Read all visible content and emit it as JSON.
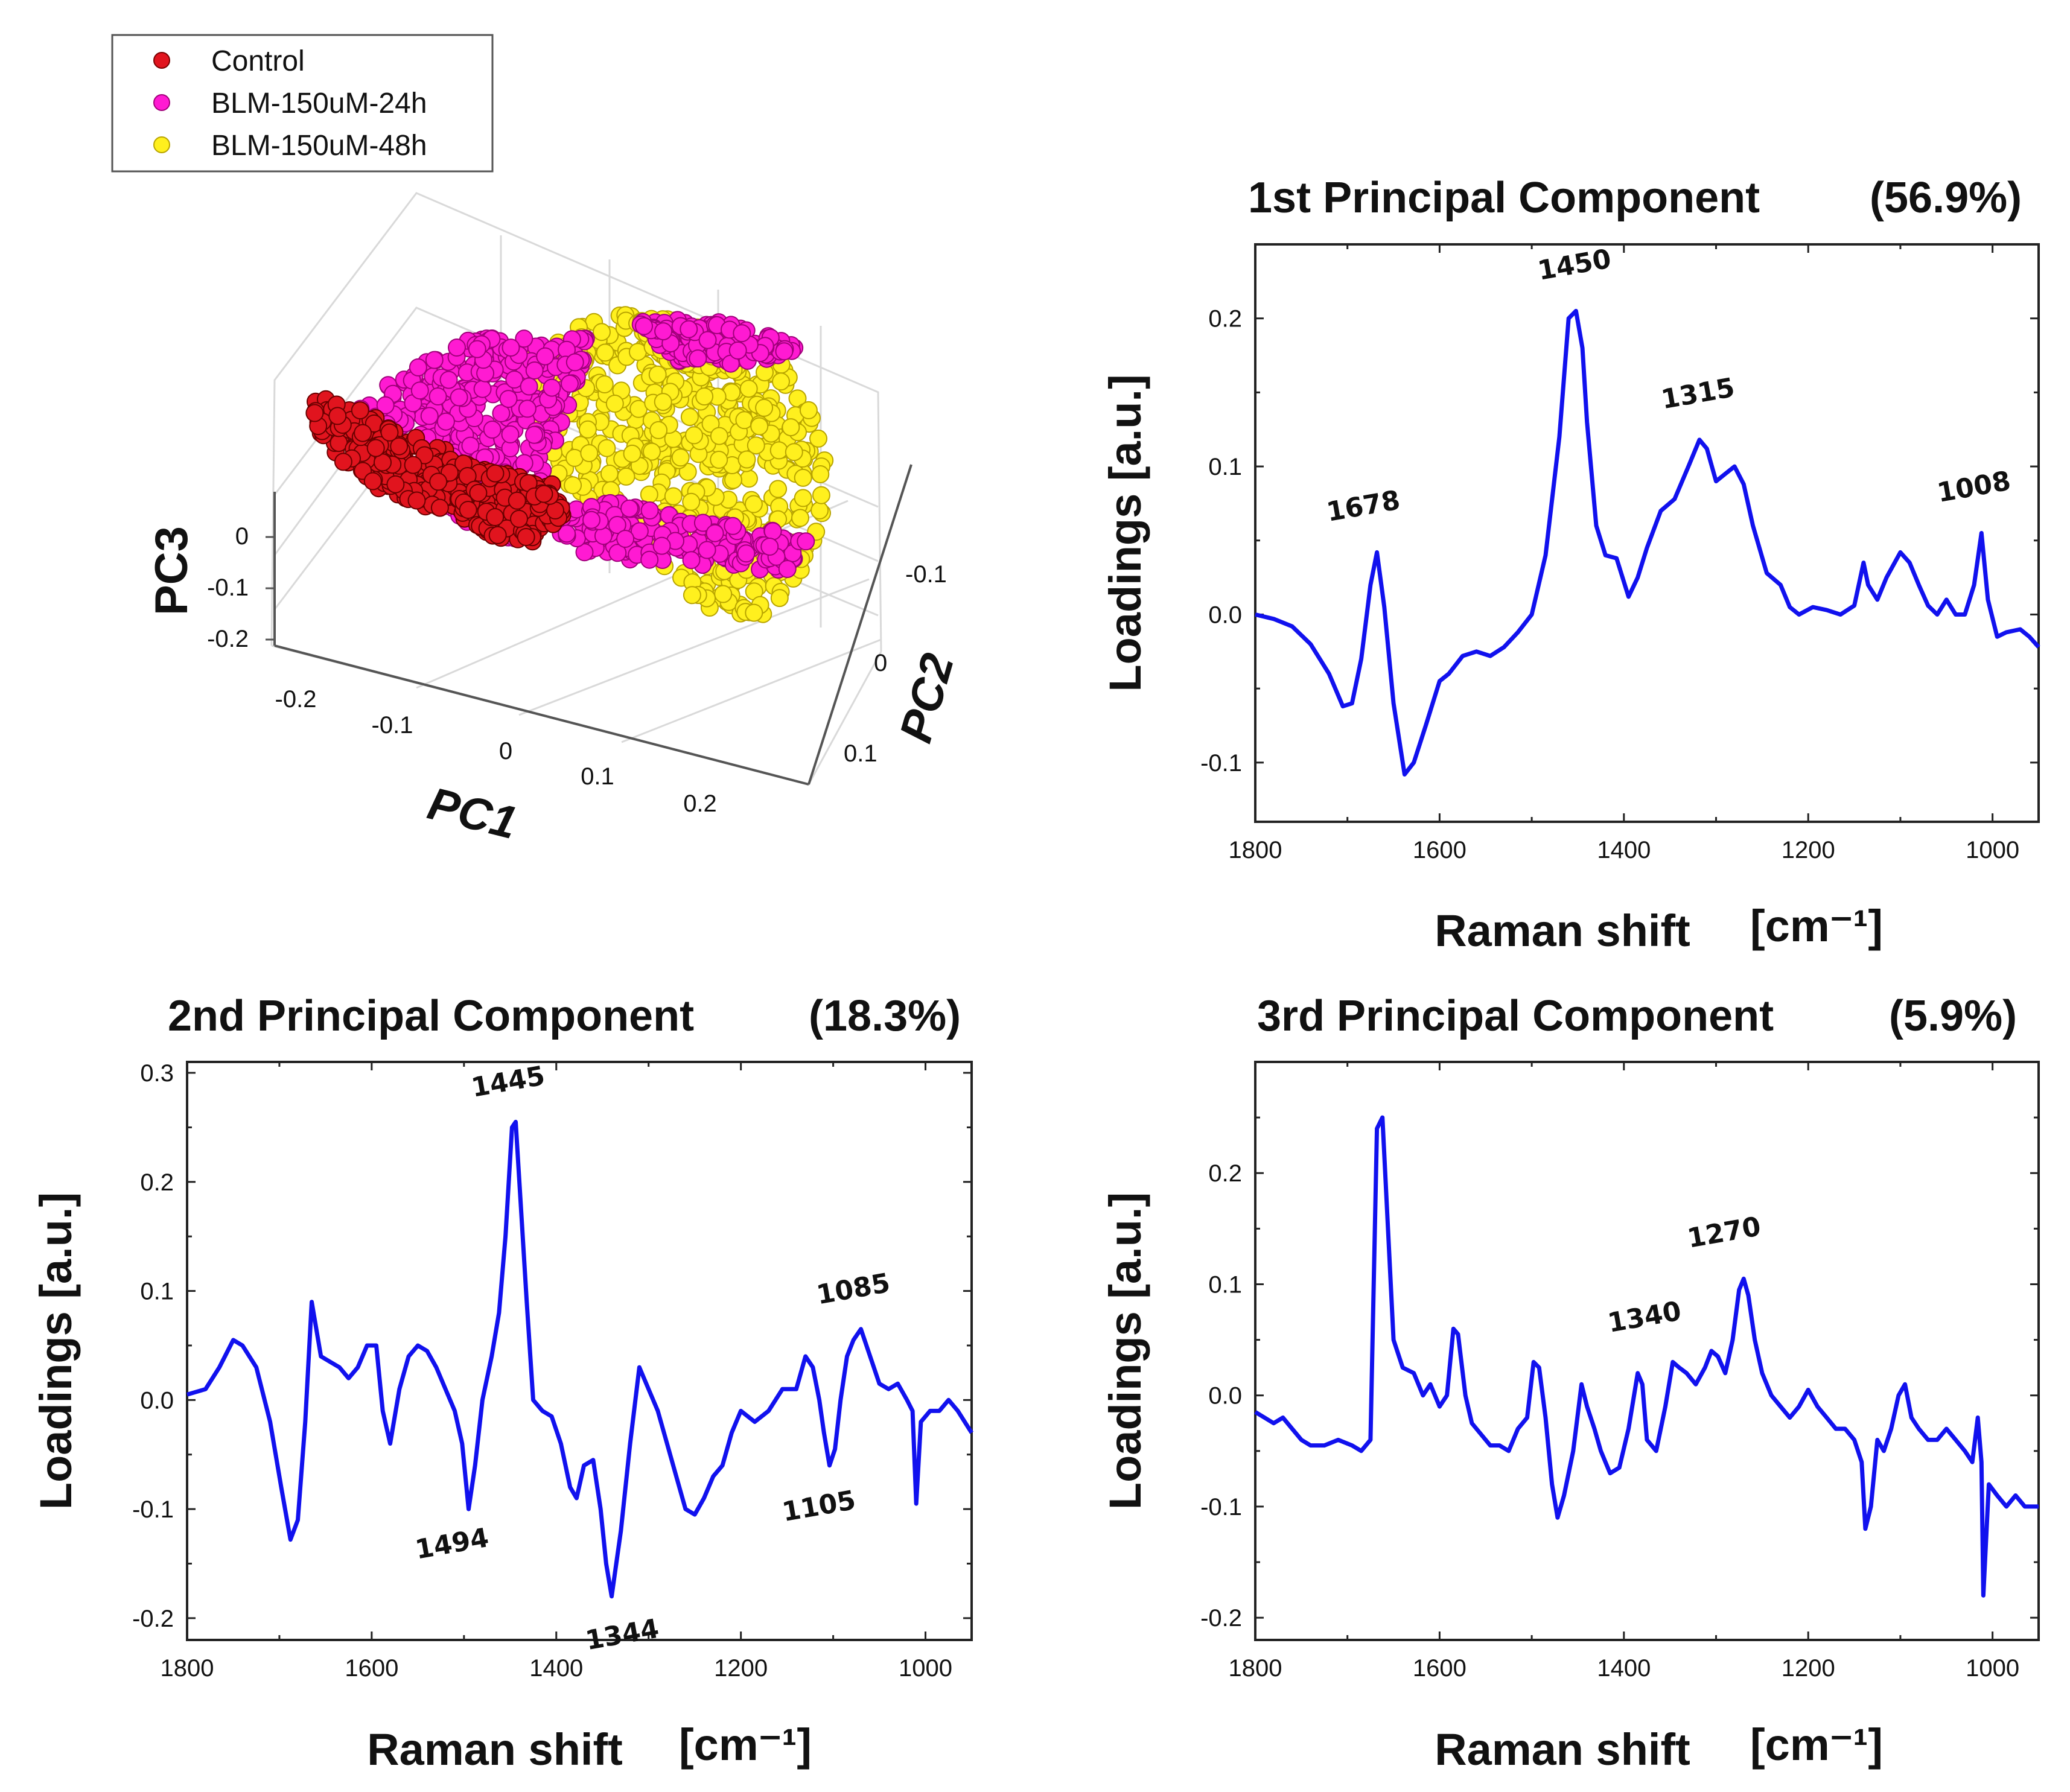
{
  "colors": {
    "control": "#e1141e",
    "blm24": "#ff1ad2",
    "blm48": "#fff01e",
    "line": "#1111ee"
  },
  "chart_data": [
    {
      "type": "scatter",
      "title": "",
      "xlabel": "PC1",
      "ylabel": "PC2",
      "zlabel": "PC3",
      "x_ticks": [
        "-0.2",
        "-0.1",
        "0",
        "0.1",
        "0.2"
      ],
      "y_ticks": [
        "-0.1",
        "0",
        "0.1"
      ],
      "z_ticks": [
        "0",
        "-0.1",
        "-0.2"
      ],
      "xlim": [
        -0.25,
        0.25
      ],
      "ylim": [
        -0.15,
        0.15
      ],
      "zlim": [
        -0.25,
        0.05
      ],
      "legend_position": "top-left",
      "series": [
        {
          "name": "Control",
          "color_key": "control",
          "pc1": [
            -0.2,
            -0.08
          ],
          "pc2": [
            -0.02,
            0.1
          ],
          "pc3": [
            -0.2,
            0.02
          ]
        },
        {
          "name": "BLM-150uM-24h",
          "color_key": "blm24",
          "pc1": [
            -0.15,
            0.22
          ],
          "pc2": [
            -0.12,
            0.1
          ],
          "pc3": [
            -0.1,
            0.05
          ]
        },
        {
          "name": "BLM-150uM-48h",
          "color_key": "blm48",
          "pc1": [
            -0.02,
            0.25
          ],
          "pc2": [
            -0.12,
            0.12
          ],
          "pc3": [
            -0.22,
            0.03
          ]
        }
      ]
    },
    {
      "type": "line",
      "title": "1st Principal Component",
      "percent": "(56.9%)",
      "xlabel": "Raman shift",
      "xunit": "[cm⁻¹]",
      "ylabel": "Loadings [a.u.]",
      "xlim": [
        1800,
        950
      ],
      "ylim": [
        -0.14,
        0.25
      ],
      "x_ticks": [
        "1800",
        "1600",
        "1400",
        "1200",
        "1000"
      ],
      "y_ticks": [
        "-0.1",
        "0.0",
        "0.1",
        "0.2"
      ],
      "x_tick_values": [
        1800,
        1600,
        1400,
        1200,
        1000
      ],
      "y_tick_values": [
        -0.1,
        0.0,
        0.1,
        0.2
      ],
      "x": [
        1800,
        1780,
        1760,
        1740,
        1720,
        1705,
        1695,
        1685,
        1675,
        1668,
        1660,
        1650,
        1638,
        1628,
        1615,
        1600,
        1590,
        1575,
        1560,
        1545,
        1530,
        1515,
        1500,
        1485,
        1470,
        1460,
        1452,
        1445,
        1440,
        1430,
        1420,
        1408,
        1395,
        1385,
        1375,
        1360,
        1345,
        1330,
        1318,
        1310,
        1300,
        1290,
        1280,
        1270,
        1260,
        1245,
        1230,
        1220,
        1210,
        1195,
        1180,
        1165,
        1150,
        1140,
        1135,
        1125,
        1115,
        1100,
        1090,
        1080,
        1070,
        1060,
        1050,
        1040,
        1030,
        1020,
        1012,
        1005,
        995,
        985,
        970,
        960,
        950
      ],
      "y": [
        0.0,
        -0.003,
        -0.008,
        -0.02,
        -0.04,
        -0.062,
        -0.06,
        -0.03,
        0.02,
        0.042,
        0.005,
        -0.06,
        -0.108,
        -0.1,
        -0.075,
        -0.045,
        -0.04,
        -0.028,
        -0.025,
        -0.028,
        -0.022,
        -0.012,
        0.0,
        0.04,
        0.12,
        0.2,
        0.205,
        0.18,
        0.13,
        0.06,
        0.04,
        0.038,
        0.012,
        0.025,
        0.045,
        0.07,
        0.078,
        0.1,
        0.118,
        0.112,
        0.09,
        0.095,
        0.1,
        0.088,
        0.06,
        0.028,
        0.02,
        0.005,
        0.0,
        0.005,
        0.003,
        0.0,
        0.006,
        0.035,
        0.02,
        0.01,
        0.025,
        0.042,
        0.035,
        0.02,
        0.006,
        0.0,
        0.01,
        0.0,
        0.0,
        0.02,
        0.055,
        0.01,
        -0.015,
        -0.012,
        -0.01,
        -0.015,
        -0.022
      ],
      "peaks": [
        {
          "label": "1678",
          "x": 1668,
          "y": 0.042
        },
        {
          "label": "1450",
          "x": 1452,
          "y": 0.205
        },
        {
          "label": "1315",
          "x": 1318,
          "y": 0.118
        },
        {
          "label": "1008",
          "x": 1012,
          "y": 0.055
        }
      ]
    },
    {
      "type": "line",
      "title": "2nd Principal Component",
      "percent": "(18.3%)",
      "xlabel": "Raman shift",
      "xunit": "[cm⁻¹]",
      "ylabel": "Loadings [a.u.]",
      "xlim": [
        1800,
        950
      ],
      "ylim": [
        -0.22,
        0.31
      ],
      "x_ticks": [
        "1800",
        "1600",
        "1400",
        "1200",
        "1000"
      ],
      "y_ticks": [
        "-0.2",
        "-0.1",
        "0.0",
        "0.1",
        "0.2",
        "0.3"
      ],
      "x_tick_values": [
        1800,
        1600,
        1400,
        1200,
        1000
      ],
      "y_tick_values": [
        -0.2,
        -0.1,
        0.0,
        0.1,
        0.2,
        0.3
      ],
      "x": [
        1800,
        1780,
        1765,
        1750,
        1740,
        1725,
        1710,
        1698,
        1688,
        1680,
        1672,
        1665,
        1655,
        1645,
        1635,
        1625,
        1615,
        1605,
        1595,
        1588,
        1580,
        1570,
        1560,
        1550,
        1540,
        1530,
        1520,
        1510,
        1502,
        1495,
        1488,
        1480,
        1470,
        1462,
        1455,
        1448,
        1444,
        1440,
        1432,
        1425,
        1415,
        1405,
        1395,
        1385,
        1378,
        1370,
        1360,
        1352,
        1346,
        1340,
        1330,
        1320,
        1310,
        1300,
        1290,
        1280,
        1270,
        1260,
        1250,
        1240,
        1230,
        1220,
        1210,
        1200,
        1185,
        1170,
        1155,
        1140,
        1130,
        1122,
        1115,
        1110,
        1104,
        1098,
        1092,
        1085,
        1078,
        1070,
        1060,
        1050,
        1040,
        1030,
        1020,
        1014,
        1010,
        1005,
        995,
        985,
        975,
        965,
        950
      ],
      "y": [
        0.005,
        0.01,
        0.03,
        0.055,
        0.05,
        0.03,
        -0.02,
        -0.08,
        -0.128,
        -0.11,
        -0.02,
        0.09,
        0.04,
        0.035,
        0.03,
        0.02,
        0.03,
        0.05,
        0.05,
        -0.01,
        -0.04,
        0.01,
        0.04,
        0.05,
        0.045,
        0.03,
        0.01,
        -0.01,
        -0.04,
        -0.1,
        -0.06,
        0.0,
        0.04,
        0.08,
        0.15,
        0.25,
        0.255,
        0.2,
        0.09,
        0.0,
        -0.01,
        -0.015,
        -0.04,
        -0.08,
        -0.09,
        -0.06,
        -0.055,
        -0.1,
        -0.15,
        -0.18,
        -0.12,
        -0.04,
        0.03,
        0.01,
        -0.01,
        -0.04,
        -0.07,
        -0.1,
        -0.105,
        -0.09,
        -0.07,
        -0.06,
        -0.03,
        -0.01,
        -0.02,
        -0.01,
        0.01,
        0.01,
        0.04,
        0.03,
        0.0,
        -0.03,
        -0.06,
        -0.045,
        0.0,
        0.04,
        0.055,
        0.065,
        0.04,
        0.015,
        0.01,
        0.015,
        0.0,
        -0.01,
        -0.095,
        -0.02,
        -0.01,
        -0.01,
        0.0,
        -0.01,
        -0.03
      ],
      "peaks": [
        {
          "label": "1445",
          "x": 1444,
          "y": 0.255
        },
        {
          "label": "1494",
          "x": 1495,
          "y": -0.1
        },
        {
          "label": "1344",
          "x": 1340,
          "y": -0.18
        },
        {
          "label": "1085",
          "x": 1070,
          "y": 0.065
        },
        {
          "label": "1105",
          "x": 1104,
          "y": -0.06
        }
      ]
    },
    {
      "type": "line",
      "title": "3rd Principal Component",
      "percent": "(5.9%)",
      "xlabel": "Raman shift",
      "xunit": "[cm⁻¹]",
      "ylabel": "Loadings [a.u.]",
      "xlim": [
        1800,
        950
      ],
      "ylim": [
        -0.22,
        0.3
      ],
      "x_ticks": [
        "1800",
        "1600",
        "1400",
        "1200",
        "1000"
      ],
      "y_ticks": [
        "-0.2",
        "-0.1",
        "0.0",
        "0.1",
        "0.2"
      ],
      "x_tick_values": [
        1800,
        1600,
        1400,
        1200,
        1000
      ],
      "y_tick_values": [
        -0.2,
        -0.1,
        0.0,
        0.1,
        0.2
      ],
      "x": [
        1800,
        1790,
        1780,
        1770,
        1760,
        1750,
        1740,
        1725,
        1710,
        1695,
        1685,
        1675,
        1668,
        1662,
        1656,
        1650,
        1640,
        1628,
        1618,
        1610,
        1600,
        1592,
        1585,
        1580,
        1572,
        1565,
        1555,
        1545,
        1535,
        1525,
        1515,
        1505,
        1498,
        1492,
        1485,
        1478,
        1472,
        1465,
        1455,
        1446,
        1440,
        1432,
        1425,
        1415,
        1405,
        1395,
        1385,
        1380,
        1375,
        1365,
        1355,
        1347,
        1340,
        1332,
        1322,
        1312,
        1305,
        1298,
        1290,
        1282,
        1275,
        1270,
        1265,
        1258,
        1250,
        1240,
        1230,
        1220,
        1210,
        1200,
        1190,
        1180,
        1170,
        1160,
        1150,
        1142,
        1138,
        1132,
        1125,
        1118,
        1110,
        1102,
        1095,
        1088,
        1080,
        1070,
        1060,
        1050,
        1040,
        1030,
        1022,
        1016,
        1012,
        1010,
        1004,
        995,
        985,
        975,
        965,
        955,
        950
      ],
      "y": [
        -0.015,
        -0.02,
        -0.025,
        -0.02,
        -0.03,
        -0.04,
        -0.045,
        -0.045,
        -0.04,
        -0.045,
        -0.05,
        -0.04,
        0.24,
        0.25,
        0.15,
        0.05,
        0.025,
        0.02,
        0.0,
        0.01,
        -0.01,
        0.0,
        0.06,
        0.055,
        0.0,
        -0.025,
        -0.035,
        -0.045,
        -0.045,
        -0.05,
        -0.03,
        -0.02,
        0.03,
        0.025,
        -0.02,
        -0.08,
        -0.11,
        -0.09,
        -0.05,
        0.01,
        -0.01,
        -0.03,
        -0.05,
        -0.07,
        -0.065,
        -0.03,
        0.02,
        0.01,
        -0.04,
        -0.05,
        -0.01,
        0.03,
        0.025,
        0.02,
        0.01,
        0.025,
        0.04,
        0.035,
        0.02,
        0.05,
        0.095,
        0.105,
        0.09,
        0.05,
        0.02,
        0.0,
        -0.01,
        -0.02,
        -0.01,
        0.005,
        -0.01,
        -0.02,
        -0.03,
        -0.03,
        -0.04,
        -0.06,
        -0.12,
        -0.1,
        -0.04,
        -0.05,
        -0.03,
        0.0,
        0.01,
        -0.02,
        -0.03,
        -0.04,
        -0.04,
        -0.03,
        -0.04,
        -0.05,
        -0.06,
        -0.02,
        -0.06,
        -0.18,
        -0.08,
        -0.09,
        -0.1,
        -0.09,
        -0.1,
        -0.1,
        -0.1
      ],
      "peaks": [
        {
          "label": "1340",
          "x": 1340,
          "y": 0.03
        },
        {
          "label": "1270",
          "x": 1270,
          "y": 0.105
        }
      ]
    }
  ]
}
